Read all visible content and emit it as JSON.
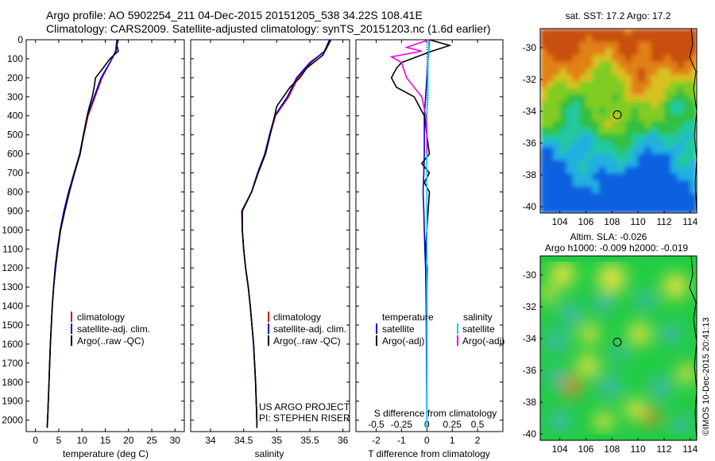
{
  "header": {
    "line1": "Argo profile: AO 5902254_211 04-Dec-2015 20151205_538 34.22S 108.41E",
    "line2": "Climatology: CARS2009. Satellite-adjusted climatology: synTS_20151203.nc (1.6d earlier)"
  },
  "colors": {
    "climatology": "#dd0000",
    "satellite": "#0000dd",
    "argo": "#000000",
    "salinity_satellite": "#00ccff",
    "salinity_argo": "#ee00ee"
  },
  "legend": {
    "climatology": "climatology",
    "satellite_adj": "satellite-adj. clim.",
    "argo_raw": "Argo(..raw -QC)",
    "temperature": "temperature",
    "salinity": "salinity",
    "satellite": "satellite",
    "argo_adj": "Argo(-adj)"
  },
  "credits": {
    "project": "US ARGO PROJECT",
    "pi": "PI: STEPHEN RISER",
    "watermark": "©IMOS 10-Dec-2015 20:41:13"
  },
  "chart_data": [
    {
      "type": "line",
      "panel": "temperature",
      "xlabel": "temperature (deg C)",
      "ylabel": "",
      "xlim": [
        -2,
        32
      ],
      "ylim": [
        2060,
        0
      ],
      "xticks": [
        0,
        5,
        10,
        15,
        20,
        25,
        30
      ],
      "yticks": [
        0,
        100,
        200,
        300,
        400,
        500,
        600,
        700,
        800,
        900,
        1000,
        1100,
        1200,
        1300,
        1400,
        1500,
        1600,
        1700,
        1800,
        1900,
        2000
      ],
      "grid": false,
      "legend_position": "lower-center",
      "series": [
        {
          "name": "climatology",
          "depth": [
            0,
            60,
            120,
            200,
            300,
            400,
            500,
            600,
            700,
            800,
            900,
            1000,
            1100,
            1200,
            1300,
            1400,
            1600,
            1800,
            2000,
            2040
          ],
          "values": [
            17.5,
            17.2,
            16,
            14.3,
            12.8,
            11.3,
            10.4,
            9.6,
            8.4,
            7.2,
            6.2,
            5.4,
            4.8,
            4.3,
            3.9,
            3.6,
            3.2,
            2.9,
            2.6,
            2.5
          ]
        },
        {
          "name": "satellite-adj. clim.",
          "depth": [
            0,
            60,
            120,
            200,
            300,
            400,
            500,
            600,
            700,
            800,
            900,
            1000,
            1100,
            1200,
            1300,
            1400,
            1600,
            1800,
            2000,
            2040
          ],
          "values": [
            17.6,
            17.3,
            16,
            14.1,
            12.6,
            11.2,
            10.3,
            9.5,
            8.3,
            7.1,
            6.1,
            5.3,
            4.7,
            4.2,
            3.9,
            3.6,
            3.2,
            2.9,
            2.6,
            2.5
          ]
        },
        {
          "name": "Argo(..raw -QC)",
          "depth": [
            0,
            30,
            60,
            100,
            150,
            200,
            250,
            300,
            350,
            400,
            500,
            600,
            700,
            800,
            900,
            1000,
            1100,
            1200,
            1300,
            1400,
            1600,
            1800,
            2000,
            2040
          ],
          "values": [
            17.8,
            17.5,
            17.8,
            16,
            14.5,
            12.9,
            12.6,
            12.2,
            11.6,
            11.1,
            10.3,
            9.6,
            8.4,
            7.3,
            6.3,
            5.4,
            4.8,
            4.3,
            3.9,
            3.6,
            3.2,
            2.9,
            2.6,
            2.5
          ]
        }
      ]
    },
    {
      "type": "line",
      "panel": "salinity",
      "xlabel": "salinity",
      "xlim": [
        33.7,
        36.1
      ],
      "ylim": [
        2060,
        0
      ],
      "xticks": [
        34,
        34.5,
        35,
        35.5,
        36
      ],
      "series": [
        {
          "name": "climatology",
          "depth": [
            0,
            60,
            120,
            200,
            300,
            400,
            500,
            600,
            700,
            800,
            900,
            1000,
            1100,
            1200,
            1300,
            1400,
            1600,
            1800,
            2000,
            2040
          ],
          "values": [
            35.8,
            35.72,
            35.52,
            35.32,
            35.18,
            34.98,
            34.9,
            34.83,
            34.72,
            34.62,
            34.47,
            34.48,
            34.5,
            34.53,
            34.57,
            34.6,
            34.65,
            34.68,
            34.7,
            34.7
          ]
        },
        {
          "name": "satellite-adj. clim.",
          "depth": [
            0,
            60,
            120,
            200,
            300,
            400,
            500,
            600,
            700,
            800,
            900,
            1000,
            1100,
            1200,
            1300,
            1400,
            1600,
            1800,
            2000,
            2040
          ],
          "values": [
            35.82,
            35.73,
            35.5,
            35.3,
            35.16,
            34.97,
            34.89,
            34.82,
            34.71,
            34.62,
            34.48,
            34.48,
            34.5,
            34.53,
            34.57,
            34.6,
            34.65,
            34.68,
            34.7,
            34.7
          ]
        },
        {
          "name": "Argo(..raw -QC)",
          "depth": [
            0,
            40,
            80,
            150,
            200,
            250,
            300,
            350,
            400,
            500,
            600,
            700,
            800,
            900,
            1000,
            1100,
            1200,
            1300,
            1400,
            1600,
            1800,
            2000,
            2040
          ],
          "values": [
            35.8,
            35.75,
            35.7,
            35.45,
            35.35,
            35.2,
            35.1,
            35.0,
            34.97,
            34.9,
            34.83,
            34.72,
            34.62,
            34.48,
            34.48,
            34.5,
            34.53,
            34.57,
            34.6,
            34.65,
            34.68,
            34.7,
            34.7
          ]
        }
      ]
    },
    {
      "type": "line",
      "panel": "difference",
      "xlabel": "T difference from climatology",
      "xlabel_top": "S difference from climatology",
      "xlim": [
        -2.8,
        3
      ],
      "ylim": [
        2060,
        0
      ],
      "xticks": [
        -2,
        -1,
        0,
        1,
        2
      ],
      "xticks_salinity": [
        -0.5,
        -0.25,
        0,
        0.25,
        0.5
      ],
      "series": [
        {
          "name": "temperature satellite",
          "depth": [
            0,
            100,
            200,
            300,
            400,
            500,
            600,
            700,
            800,
            900,
            1000,
            1100,
            1200,
            1400,
            1600,
            1800,
            2000,
            2040
          ],
          "values": [
            0.1,
            0.05,
            0,
            -0.05,
            -0.1,
            -0.1,
            -0.1,
            -0.12,
            -0.15,
            -0.12,
            -0.1,
            -0.08,
            -0.05,
            -0.03,
            -0.02,
            -0.01,
            0,
            0
          ]
        },
        {
          "name": "temperature Argo(-adj)",
          "depth": [
            0,
            30,
            60,
            90,
            120,
            150,
            200,
            250,
            300,
            350,
            400,
            500,
            600,
            650,
            700,
            750,
            800,
            900,
            1000,
            1100,
            1200,
            1300,
            1400,
            1600,
            1800,
            2000,
            2040
          ],
          "values": [
            0.1,
            0.9,
            0.2,
            -0.4,
            -1.0,
            -1.2,
            -1.4,
            -1.2,
            -0.5,
            -0.3,
            -0.1,
            0,
            0.1,
            -0.2,
            0.1,
            -0.1,
            0.1,
            0.05,
            0,
            -0.05,
            0.02,
            0,
            0,
            0,
            0,
            0,
            0
          ]
        },
        {
          "name": "salinity satellite",
          "depth": [
            0,
            100,
            200,
            300,
            400,
            600,
            800,
            1000,
            1200,
            1400,
            1600,
            1800,
            2000,
            2040
          ],
          "values": [
            0.02,
            0.01,
            0.01,
            0.01,
            0,
            0,
            0,
            0,
            0,
            0,
            0,
            0,
            0,
            0
          ]
        },
        {
          "name": "salinity Argo(-adj)",
          "depth": [
            0,
            40,
            60,
            90,
            120,
            200,
            300,
            400,
            500,
            600
          ],
          "values": [
            0.02,
            -0.2,
            -0.05,
            -0.35,
            -0.25,
            -0.2,
            -0.05,
            -0.01,
            0,
            0
          ]
        }
      ]
    },
    {
      "type": "heatmap",
      "panel": "sst-map",
      "title": "sat. SST: 17.2 Argo: 17.2",
      "xlim": [
        102.5,
        114.5
      ],
      "ylim": [
        -40.4,
        -28.8
      ],
      "xticks": [
        104,
        106,
        108,
        110,
        112,
        114
      ],
      "yticks": [
        -30,
        -32,
        -34,
        -36,
        -38,
        -40
      ],
      "marker": {
        "lon": 108.41,
        "lat": -34.22
      }
    },
    {
      "type": "heatmap",
      "panel": "sla-map",
      "title": "Altim. SLA: -0.026",
      "subtitle": "Argo h1000: -0.009 h2000: -0.019",
      "xlim": [
        102.5,
        114.5
      ],
      "ylim": [
        -40.4,
        -28.8
      ],
      "xticks": [
        104,
        106,
        108,
        110,
        112,
        114
      ],
      "yticks": [
        -30,
        -32,
        -34,
        -36,
        -38,
        -40
      ],
      "marker": {
        "lon": 108.41,
        "lat": -34.22
      }
    }
  ]
}
